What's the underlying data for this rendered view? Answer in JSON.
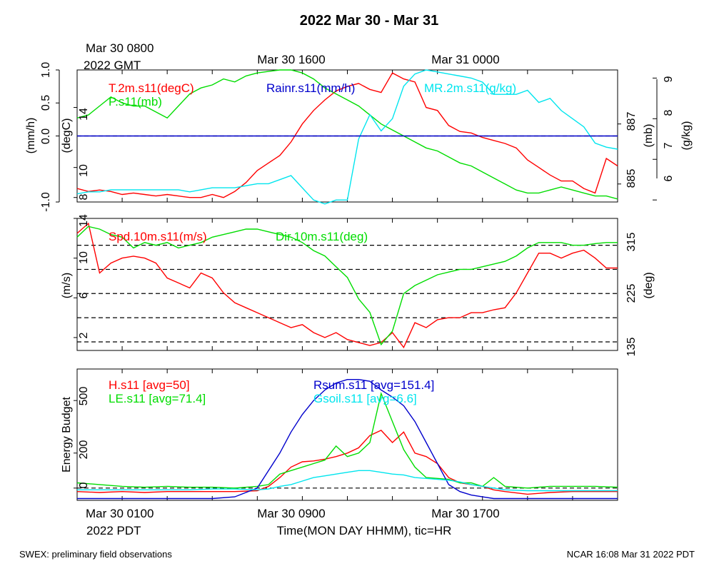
{
  "title": "2022 Mar 30 - Mar 31",
  "top_axis": {
    "first_label": [
      "Mar 30 0800",
      "2022 GMT"
    ],
    "labels": [
      "Mar 30 1600",
      "Mar 31 0000"
    ]
  },
  "bottom_axis": {
    "first_label": [
      "Mar 30 0100",
      "2022 PDT"
    ],
    "labels": [
      "Mar 30 0900",
      "Mar 30 1700"
    ],
    "title": "Time(MON DAY HHMM), tic=HR"
  },
  "footer": {
    "left": "SWEX: preliminary field observations",
    "right": "NCAR 16:08 Mar 31 2022 PDT"
  },
  "colors": {
    "red": "#ff0000",
    "green": "#00dd00",
    "blue": "#0000cc",
    "cyan": "#00e5ee"
  },
  "chart_data": [
    {
      "type": "line",
      "x_unit": "hours since Mar 30 0100 PDT",
      "x_range": [
        0,
        24
      ],
      "left_outer_axis": {
        "label": "(mm/h)",
        "ylim": [
          -1.0,
          1.0
        ],
        "ticks": [
          "-1.0",
          "0.0",
          "0.5",
          "1.0"
        ]
      },
      "left_inner_axis": {
        "label": "(degC)",
        "ylim": [
          7.7,
          16.5
        ],
        "ticks": [
          "8",
          "10",
          "14"
        ]
      },
      "right_inner_axis": {
        "label": "(mb)",
        "ylim": [
          884.4,
          888.8
        ],
        "ticks": [
          "885",
          "887"
        ]
      },
      "right_outer_axis": {
        "label": "(g/kg)",
        "ylim": [
          5.95,
          9.2
        ],
        "ticks": [
          "6",
          "7",
          "8",
          "9"
        ]
      },
      "series": [
        {
          "name": "T.2m.s11(degC)",
          "color": "red",
          "axis": "degC",
          "x": [
            0,
            0.5,
            1,
            1.5,
            2,
            2.5,
            3,
            3.5,
            4,
            4.5,
            5,
            5.5,
            6,
            6.5,
            7,
            7.5,
            8,
            8.5,
            9,
            9.5,
            10,
            10.5,
            11,
            11.5,
            12,
            12.5,
            13,
            13.5,
            14,
            14.5,
            15,
            15.5,
            16,
            16.5,
            17,
            17.5,
            18,
            18.5,
            19,
            19.5,
            20,
            20.5,
            21,
            21.5,
            22,
            22.5,
            23,
            23.5,
            24
          ],
          "values": [
            8.6,
            8.4,
            8.5,
            8.4,
            8.2,
            8.3,
            8.2,
            8.1,
            8.2,
            8.1,
            8.0,
            8.0,
            8.2,
            8.0,
            8.4,
            9.0,
            9.8,
            10.3,
            10.8,
            11.7,
            12.9,
            13.8,
            14.5,
            15.1,
            15.4,
            15.6,
            15.2,
            15.0,
            16.3,
            15.9,
            15.7,
            14.0,
            13.8,
            12.8,
            12.4,
            12.3,
            12.0,
            11.8,
            11.6,
            11.3,
            10.5,
            10.0,
            9.5,
            9.1,
            9.1,
            8.6,
            8.3,
            10.6,
            10.1
          ]
        },
        {
          "name": "P.s11(mb)",
          "color": "green",
          "axis": "mb",
          "x": [
            0,
            0.5,
            1,
            1.5,
            2,
            2.5,
            3,
            3.5,
            4,
            4.5,
            5,
            5.5,
            6,
            6.5,
            7,
            7.5,
            8,
            8.5,
            9,
            9.5,
            10,
            10.5,
            11,
            11.5,
            12,
            12.5,
            13,
            13.5,
            14,
            14.5,
            15,
            15.5,
            16,
            16.5,
            17,
            17.5,
            18,
            18.5,
            19,
            19.5,
            20,
            20.5,
            21,
            21.5,
            22,
            22.5,
            23,
            23.5,
            24
          ],
          "values": [
            887.2,
            887.3,
            887.6,
            887.9,
            887.7,
            887.6,
            887.6,
            887.4,
            887.2,
            887.6,
            888.0,
            888.2,
            888.3,
            888.5,
            888.4,
            888.6,
            888.7,
            888.75,
            888.8,
            888.8,
            888.7,
            888.5,
            888.2,
            888.0,
            887.8,
            887.6,
            887.3,
            887.0,
            886.8,
            886.6,
            886.4,
            886.2,
            886.1,
            885.9,
            885.7,
            885.6,
            885.4,
            885.2,
            885.0,
            884.8,
            884.7,
            884.7,
            884.8,
            884.9,
            884.8,
            884.7,
            884.6,
            884.6,
            884.5
          ]
        },
        {
          "name": "MR.2m.s11(g/kg)",
          "color": "cyan",
          "axis": "g/kg",
          "x": [
            0,
            0.5,
            1,
            1.5,
            2,
            2.5,
            3,
            3.5,
            4,
            4.5,
            5,
            5.5,
            6,
            6.5,
            7,
            7.5,
            8,
            8.5,
            9,
            9.5,
            10,
            10.5,
            11,
            11.5,
            12,
            12.5,
            13,
            13.5,
            14,
            14.5,
            15,
            15.5,
            16,
            16.5,
            17,
            17.5,
            18,
            18.5,
            19,
            19.5,
            20,
            20.5,
            21,
            21.5,
            22,
            22.5,
            23,
            23.5,
            24
          ],
          "values": [
            6.15,
            6.2,
            6.2,
            6.25,
            6.25,
            6.25,
            6.25,
            6.25,
            6.25,
            6.25,
            6.2,
            6.25,
            6.3,
            6.3,
            6.3,
            6.35,
            6.4,
            6.4,
            6.5,
            6.6,
            6.3,
            6.0,
            5.9,
            6.0,
            6.0,
            7.5,
            8.1,
            7.7,
            8.0,
            8.8,
            9.1,
            9.2,
            9.15,
            9.1,
            9.05,
            9.0,
            8.9,
            8.6,
            8.6,
            8.6,
            8.7,
            8.4,
            8.5,
            8.2,
            8.0,
            7.8,
            7.4,
            7.3,
            7.25
          ]
        },
        {
          "name": "Rainr.s11(mm/h)",
          "color": "blue",
          "axis": "mm/h",
          "x": [
            0,
            24
          ],
          "values": [
            0.0,
            0.0
          ]
        }
      ]
    },
    {
      "type": "line",
      "x_unit": "hours since Mar 30 0100 PDT",
      "x_range": [
        0,
        24
      ],
      "left_axis": {
        "label": "(m/s)",
        "ylim": [
          0.7,
          14
        ],
        "ticks": [
          "2",
          "6",
          "10",
          "14"
        ]
      },
      "right_axis": {
        "label": "(deg)",
        "ylim": [
          119,
          365
        ],
        "ticks": [
          "135",
          "225",
          "315"
        ]
      },
      "series": [
        {
          "name": "Spd.10m.s11(m/s)",
          "color": "red",
          "axis": "m/s",
          "x": [
            0,
            0.5,
            1,
            1.5,
            2,
            2.5,
            3,
            3.5,
            4,
            4.5,
            5,
            5.5,
            6,
            6.5,
            7,
            7.5,
            8,
            8.5,
            9,
            9.5,
            10,
            10.5,
            11,
            11.5,
            12,
            12.5,
            13,
            13.5,
            14,
            14.5,
            15,
            15.5,
            16,
            16.5,
            17,
            17.5,
            18,
            18.5,
            19,
            19.5,
            20,
            20.5,
            21,
            21.5,
            22,
            22.5,
            23,
            23.5,
            24
          ],
          "values": [
            12.5,
            13.5,
            8.5,
            9.5,
            10.0,
            10.2,
            10.0,
            9.5,
            8.0,
            7.5,
            7.0,
            8.5,
            8.0,
            6.5,
            5.5,
            5.0,
            4.5,
            4.0,
            3.5,
            3.0,
            3.3,
            2.5,
            2.0,
            2.5,
            1.8,
            1.5,
            1.2,
            1.5,
            2.5,
            1.0,
            3.5,
            3.0,
            3.8,
            4.0,
            4.0,
            4.5,
            4.5,
            4.8,
            5.0,
            6.5,
            8.5,
            10.5,
            10.5,
            10.0,
            10.5,
            10.8,
            10.0,
            9.0,
            9.0
          ]
        },
        {
          "name": "Dir.10m.s11(deg)",
          "color": "green",
          "axis": "deg",
          "x": [
            0,
            0.5,
            1,
            1.5,
            2,
            2.5,
            3,
            3.5,
            4,
            4.5,
            5,
            5.5,
            6,
            6.5,
            7,
            7.5,
            8,
            8.5,
            9,
            9.5,
            10,
            10.5,
            11,
            11.5,
            12,
            12.5,
            13,
            13.5,
            14,
            14.5,
            15,
            15.5,
            16,
            16.5,
            17,
            17.5,
            18,
            18.5,
            19,
            19.5,
            20,
            20.5,
            21,
            21.5,
            22,
            22.5,
            23,
            23.5,
            24
          ],
          "values": [
            330,
            350,
            345,
            335,
            330,
            310,
            320,
            315,
            320,
            310,
            315,
            320,
            330,
            335,
            340,
            345,
            345,
            340,
            335,
            330,
            320,
            305,
            295,
            275,
            255,
            215,
            190,
            130,
            155,
            225,
            240,
            250,
            260,
            265,
            270,
            270,
            275,
            280,
            285,
            295,
            310,
            320,
            320,
            320,
            315,
            315,
            318,
            320,
            320
          ]
        }
      ]
    },
    {
      "type": "line",
      "x_unit": "hours since Mar 30 0100 PDT",
      "x_range": [
        0,
        24
      ],
      "ylabel": "Energy Budget",
      "ylim": [
        -70,
        680
      ],
      "y_ticks": [
        "0",
        "200",
        "500"
      ],
      "series": [
        {
          "name": "H.s11 [avg=50]",
          "color": "red",
          "x": [
            0,
            1,
            2,
            3,
            4,
            5,
            6,
            7,
            8,
            8.5,
            9,
            9.5,
            10,
            10.5,
            11,
            11.5,
            12,
            12.5,
            13,
            13.5,
            14,
            14.5,
            15,
            15.5,
            16,
            16.5,
            17,
            17.5,
            18,
            18.5,
            19,
            20,
            21,
            22,
            23,
            24
          ],
          "values": [
            -20,
            -25,
            -20,
            -25,
            -20,
            -20,
            -20,
            -20,
            -15,
            10,
            60,
            120,
            150,
            155,
            165,
            180,
            200,
            230,
            300,
            330,
            260,
            320,
            200,
            180,
            140,
            60,
            30,
            20,
            10,
            -10,
            -20,
            -35,
            -25,
            -20,
            -20,
            -20
          ]
        },
        {
          "name": "LE.s11 [avg=71.4]",
          "color": "green",
          "x": [
            0,
            1,
            2,
            3,
            4,
            5,
            6,
            7,
            8,
            8.5,
            9,
            9.5,
            10,
            10.5,
            11,
            11.5,
            12,
            12.5,
            13,
            13.5,
            14,
            14.5,
            15,
            15.5,
            16,
            16.5,
            17,
            17.5,
            18,
            18.5,
            19,
            20,
            21,
            22,
            23,
            24
          ],
          "values": [
            30,
            20,
            10,
            5,
            10,
            5,
            5,
            0,
            10,
            20,
            80,
            100,
            120,
            140,
            160,
            240,
            180,
            200,
            260,
            540,
            380,
            220,
            120,
            60,
            55,
            50,
            30,
            30,
            10,
            60,
            10,
            0,
            10,
            10,
            10,
            5
          ]
        },
        {
          "name": "Rsum.s11 [avg=151.4]",
          "color": "blue",
          "x": [
            0,
            1,
            2,
            3,
            4,
            5,
            6,
            7,
            8,
            8.5,
            9,
            9.5,
            10,
            10.5,
            11,
            11.5,
            12,
            12.5,
            13,
            13.5,
            14,
            14.5,
            15,
            15.5,
            16,
            16.5,
            17,
            17.5,
            18,
            18.5,
            19,
            20,
            21,
            22,
            23,
            24
          ],
          "values": [
            -60,
            -60,
            -60,
            -60,
            -60,
            -60,
            -60,
            -50,
            0,
            100,
            200,
            320,
            420,
            500,
            560,
            600,
            620,
            620,
            610,
            560,
            520,
            470,
            380,
            260,
            140,
            20,
            -20,
            -40,
            -50,
            -60,
            -60,
            -60,
            -60,
            -60,
            -60,
            -60
          ]
        },
        {
          "name": "Gsoil.s11 [avg=6.6]",
          "color": "cyan",
          "x": [
            0,
            1,
            2,
            3,
            4,
            5,
            6,
            7,
            8,
            8.5,
            9,
            9.5,
            10,
            10.5,
            11,
            11.5,
            12,
            12.5,
            13,
            13.5,
            14,
            14.5,
            15,
            15.5,
            16,
            16.5,
            17,
            17.5,
            18,
            18.5,
            19,
            20,
            21,
            22,
            23,
            24
          ],
          "values": [
            -10,
            -10,
            -10,
            -10,
            -10,
            -10,
            -5,
            -5,
            -10,
            -5,
            10,
            20,
            40,
            60,
            70,
            80,
            90,
            100,
            100,
            90,
            80,
            75,
            60,
            55,
            50,
            45,
            35,
            20,
            10,
            0,
            -10,
            -15,
            -15,
            -15,
            -15,
            -15
          ]
        }
      ]
    }
  ]
}
